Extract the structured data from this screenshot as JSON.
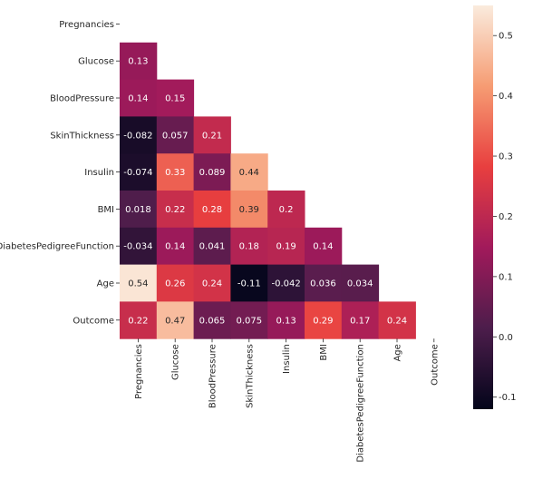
{
  "chart_data": {
    "type": "heatmap",
    "title": "",
    "xlabel": "",
    "ylabel": "",
    "mask": "upper-triangle-including-diagonal",
    "row_labels": [
      "Pregnancies",
      "Glucose",
      "BloodPressure",
      "SkinThickness",
      "Insulin",
      "BMI",
      "DiabetesPedigreeFunction",
      "Age",
      "Outcome"
    ],
    "col_labels": [
      "Pregnancies",
      "Glucose",
      "BloodPressure",
      "SkinThickness",
      "Insulin",
      "BMI",
      "DiabetesPedigreeFunction",
      "Age",
      "Outcome"
    ],
    "values": [
      [
        null,
        null,
        null,
        null,
        null,
        null,
        null,
        null,
        null
      ],
      [
        0.13,
        null,
        null,
        null,
        null,
        null,
        null,
        null,
        null
      ],
      [
        0.14,
        0.15,
        null,
        null,
        null,
        null,
        null,
        null,
        null
      ],
      [
        -0.082,
        0.057,
        0.21,
        null,
        null,
        null,
        null,
        null,
        null
      ],
      [
        -0.074,
        0.33,
        0.089,
        0.44,
        null,
        null,
        null,
        null,
        null
      ],
      [
        0.018,
        0.22,
        0.28,
        0.39,
        0.2,
        null,
        null,
        null,
        null
      ],
      [
        -0.034,
        0.14,
        0.041,
        0.18,
        0.19,
        0.14,
        null,
        null,
        null
      ],
      [
        0.54,
        0.26,
        0.24,
        -0.11,
        -0.042,
        0.036,
        0.034,
        null,
        null
      ],
      [
        0.22,
        0.47,
        0.065,
        0.075,
        0.13,
        0.29,
        0.17,
        0.24,
        null
      ]
    ],
    "labels": [
      [
        null,
        null,
        null,
        null,
        null,
        null,
        null,
        null,
        null
      ],
      [
        "0.13",
        null,
        null,
        null,
        null,
        null,
        null,
        null,
        null
      ],
      [
        "0.14",
        "0.15",
        null,
        null,
        null,
        null,
        null,
        null,
        null
      ],
      [
        "-0.082",
        "0.057",
        "0.21",
        null,
        null,
        null,
        null,
        null,
        null
      ],
      [
        "-0.074",
        "0.33",
        "0.089",
        "0.44",
        null,
        null,
        null,
        null,
        null
      ],
      [
        "0.018",
        "0.22",
        "0.28",
        "0.39",
        "0.2",
        null,
        null,
        null,
        null
      ],
      [
        "-0.034",
        "0.14",
        "0.041",
        "0.18",
        "0.19",
        "0.14",
        null,
        null,
        null
      ],
      [
        "0.54",
        "0.26",
        "0.24",
        "-0.11",
        "-0.042",
        "0.036",
        "0.034",
        null,
        null
      ],
      [
        "0.22",
        "0.47",
        "0.065",
        "0.075",
        "0.13",
        "0.29",
        "0.17",
        "0.24",
        null
      ]
    ],
    "colorbar": {
      "min": -0.12,
      "max": 0.55,
      "ticks": [
        -0.1,
        0.0,
        0.1,
        0.2,
        0.3,
        0.4,
        0.5
      ],
      "tick_labels": [
        "-0.1",
        "0.0",
        "0.1",
        "0.2",
        "0.3",
        "0.4",
        "0.5"
      ],
      "colormap": "rocket",
      "colormap_stops": [
        "#03051a",
        "#4c1d4b",
        "#a11a5b",
        "#e83f3f",
        "#f69c73",
        "#faebdd"
      ]
    }
  }
}
